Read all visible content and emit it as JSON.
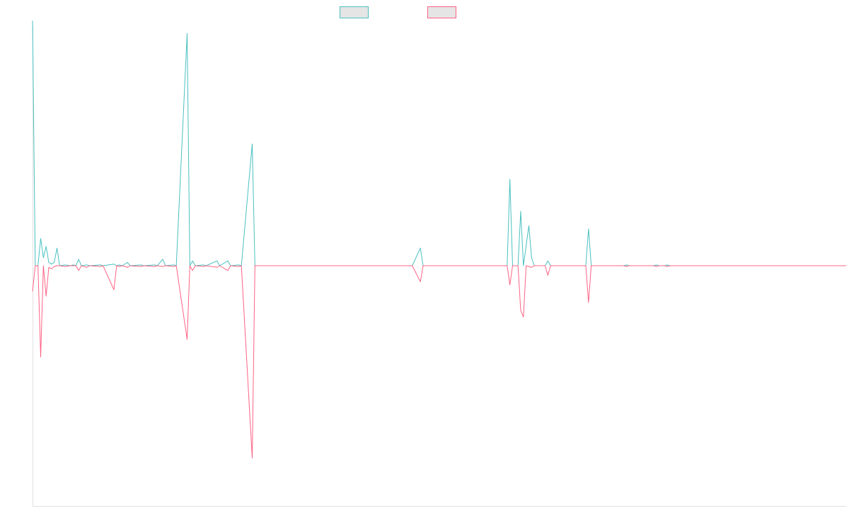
{
  "colors": {
    "series_a": "#4bc0c0",
    "series_b": "#ff6384",
    "legend_fill": "#e5e5e5",
    "axis": "#e0e0e0"
  },
  "chart_data": {
    "type": "line",
    "title": "",
    "xlabel": "",
    "ylabel": "",
    "grid": false,
    "legend": "top-center",
    "x_ticks_visible": false,
    "y_ticks_visible": false,
    "ylim": [
      -15,
      15
    ],
    "xlim": [
      0,
      300
    ],
    "series": [
      {
        "name": "",
        "color": "#4bc0c0",
        "points": [
          [
            0,
            15.3
          ],
          [
            1,
            0.0
          ],
          [
            2,
            0.0
          ],
          [
            3,
            1.7
          ],
          [
            4,
            0.5
          ],
          [
            5,
            1.2
          ],
          [
            6,
            0.2
          ],
          [
            7,
            0.1
          ],
          [
            8,
            0.2
          ],
          [
            9,
            1.1
          ],
          [
            10,
            0.0
          ],
          [
            12,
            0.05
          ],
          [
            14,
            0.0
          ],
          [
            15,
            0.05
          ],
          [
            16,
            0.0
          ],
          [
            17,
            0.4
          ],
          [
            18,
            0.0
          ],
          [
            20,
            0.05
          ],
          [
            21,
            0.0
          ],
          [
            25,
            0.05
          ],
          [
            26,
            0.0
          ],
          [
            30,
            0.1
          ],
          [
            31,
            0.0
          ],
          [
            32,
            0.05
          ],
          [
            33,
            0.0
          ],
          [
            35,
            0.2
          ],
          [
            36,
            0.0
          ],
          [
            40,
            0.05
          ],
          [
            41,
            0.0
          ],
          [
            45,
            0.05
          ],
          [
            46,
            0.0
          ],
          [
            48,
            0.4
          ],
          [
            49,
            0.0
          ],
          [
            52,
            0.05
          ],
          [
            53,
            0.0
          ],
          [
            57,
            14.5
          ],
          [
            58,
            0.0
          ],
          [
            59,
            0.3
          ],
          [
            60,
            0.0
          ],
          [
            63,
            0.05
          ],
          [
            64,
            0.0
          ],
          [
            68,
            0.3
          ],
          [
            69,
            0.0
          ],
          [
            72,
            0.3
          ],
          [
            73,
            0.0
          ],
          [
            76,
            0.05
          ],
          [
            77,
            0.0
          ],
          [
            81,
            7.6
          ],
          [
            82,
            0.0
          ],
          [
            140,
            0.0
          ],
          [
            143,
            1.1
          ],
          [
            144,
            0.0
          ],
          [
            175,
            0.0
          ],
          [
            176,
            5.4
          ],
          [
            177,
            0.0
          ],
          [
            179,
            0.0
          ],
          [
            180,
            3.4
          ],
          [
            181,
            0.0
          ],
          [
            183,
            2.5
          ],
          [
            184,
            0.5
          ],
          [
            185,
            0.0
          ],
          [
            189,
            0.0
          ],
          [
            190,
            0.3
          ],
          [
            191,
            0.0
          ],
          [
            204,
            0.0
          ],
          [
            205,
            2.3
          ],
          [
            206,
            0.0
          ],
          [
            218,
            0.0
          ],
          [
            219,
            0.05
          ],
          [
            220,
            0.0
          ],
          [
            229,
            0.0
          ],
          [
            230,
            0.05
          ],
          [
            231,
            0.0
          ],
          [
            233,
            0.0
          ],
          [
            234,
            0.05
          ],
          [
            235,
            0.0
          ],
          [
            300,
            0.0
          ]
        ]
      },
      {
        "name": "",
        "color": "#ff6384",
        "points": [
          [
            0,
            -1.6
          ],
          [
            1,
            0.0
          ],
          [
            2,
            0.0
          ],
          [
            3,
            -5.7
          ],
          [
            4,
            0.0
          ],
          [
            5,
            -1.9
          ],
          [
            6,
            -0.1
          ],
          [
            7,
            -0.2
          ],
          [
            8,
            -0.05
          ],
          [
            9,
            0.0
          ],
          [
            10,
            0.0
          ],
          [
            12,
            -0.05
          ],
          [
            14,
            0.0
          ],
          [
            16,
            0.0
          ],
          [
            17,
            -0.3
          ],
          [
            18,
            0.0
          ],
          [
            20,
            -0.1
          ],
          [
            21,
            0.0
          ],
          [
            25,
            -0.05
          ],
          [
            26,
            0.0
          ],
          [
            30,
            -1.5
          ],
          [
            31,
            0.0
          ],
          [
            32,
            -0.05
          ],
          [
            33,
            0.0
          ],
          [
            35,
            -0.1
          ],
          [
            36,
            0.0
          ],
          [
            40,
            -0.05
          ],
          [
            41,
            0.0
          ],
          [
            45,
            -0.05
          ],
          [
            46,
            0.0
          ],
          [
            48,
            -0.05
          ],
          [
            49,
            0.0
          ],
          [
            52,
            -0.05
          ],
          [
            53,
            0.0
          ],
          [
            57,
            -4.6
          ],
          [
            58,
            0.0
          ],
          [
            59,
            -0.3
          ],
          [
            60,
            0.0
          ],
          [
            63,
            -0.05
          ],
          [
            64,
            0.0
          ],
          [
            68,
            -0.1
          ],
          [
            69,
            0.0
          ],
          [
            72,
            -0.3
          ],
          [
            73,
            0.0
          ],
          [
            76,
            -0.05
          ],
          [
            77,
            0.0
          ],
          [
            81,
            -12.0
          ],
          [
            82,
            0.0
          ],
          [
            140,
            0.0
          ],
          [
            143,
            -1.0
          ],
          [
            144,
            0.0
          ],
          [
            175,
            0.0
          ],
          [
            176,
            -1.2
          ],
          [
            177,
            0.0
          ],
          [
            179,
            0.0
          ],
          [
            180,
            -2.8
          ],
          [
            181,
            -3.2
          ],
          [
            182,
            0.0
          ],
          [
            183,
            -0.05
          ],
          [
            184,
            -0.1
          ],
          [
            185,
            0.0
          ],
          [
            189,
            0.0
          ],
          [
            190,
            -0.6
          ],
          [
            191,
            0.0
          ],
          [
            204,
            0.0
          ],
          [
            205,
            -2.3
          ],
          [
            206,
            0.0
          ],
          [
            218,
            0.0
          ],
          [
            219,
            -0.05
          ],
          [
            220,
            0.0
          ],
          [
            229,
            0.0
          ],
          [
            230,
            -0.05
          ],
          [
            231,
            0.0
          ],
          [
            233,
            0.0
          ],
          [
            234,
            -0.05
          ],
          [
            235,
            0.0
          ],
          [
            300,
            0.0
          ]
        ]
      }
    ]
  }
}
